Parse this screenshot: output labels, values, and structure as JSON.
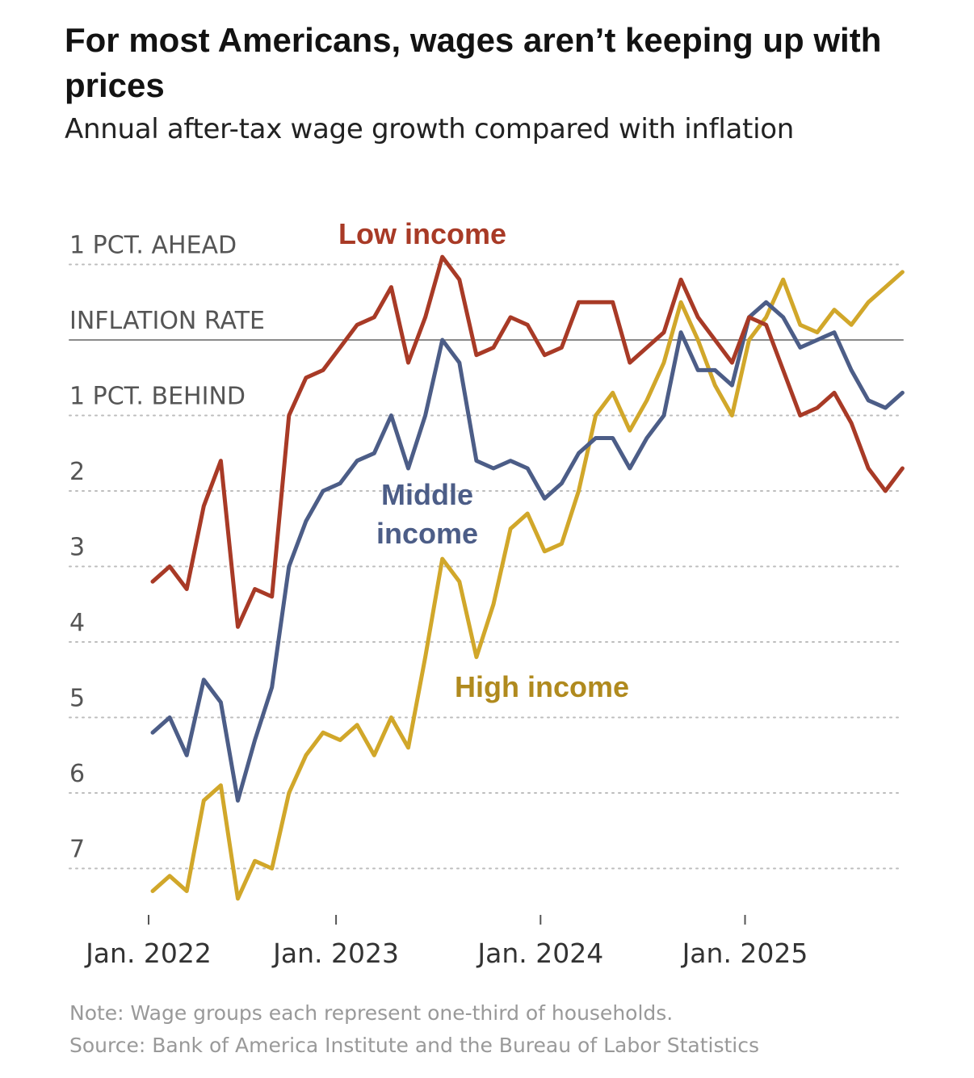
{
  "header": {
    "title": "For most Americans, wages aren’t keeping up with prices",
    "subtitle": "Annual after-tax wage growth compared with inflation"
  },
  "footer": {
    "note": "Note: Wage groups each represent one-third of households.",
    "source": "Source: Bank of America Institute and the Bureau of Labor Statistics"
  },
  "chart_data": {
    "type": "line",
    "title": "For most Americans, wages aren’t keeping up with prices",
    "subtitle": "Annual after-tax wage growth compared with inflation",
    "xlabel": "",
    "ylabel": "",
    "x_start": "Jan. 2022",
    "x_ticks": [
      {
        "label": "Jan. 2022",
        "index": 0
      },
      {
        "label": "Jan. 2023",
        "index": 11
      },
      {
        "label": "Jan. 2024",
        "index": 23
      },
      {
        "label": "Jan. 2025",
        "index": 35
      }
    ],
    "y_ticks": [
      {
        "value": 1,
        "label": "1 PCT. AHEAD"
      },
      {
        "value": 0,
        "label": "INFLATION RATE"
      },
      {
        "value": -1,
        "label": "1 PCT. BEHIND"
      },
      {
        "value": -2,
        "label": "2"
      },
      {
        "value": -3,
        "label": "3"
      },
      {
        "value": -4,
        "label": "4"
      },
      {
        "value": -5,
        "label": "5"
      },
      {
        "value": -6,
        "label": "6"
      },
      {
        "value": -7,
        "label": "7"
      }
    ],
    "ylim": [
      -7.5,
      1.2
    ],
    "grid": "dotted horizontal",
    "reference_line": {
      "value": 0,
      "label": "INFLATION RATE"
    },
    "series": [
      {
        "name": "Low income",
        "color": "#a83a26",
        "values": [
          -3.2,
          -3.0,
          -3.3,
          -2.2,
          -1.6,
          -3.8,
          -3.3,
          -3.4,
          -1.0,
          -0.5,
          -0.4,
          -0.1,
          0.2,
          0.3,
          0.7,
          -0.3,
          0.3,
          1.1,
          0.8,
          -0.2,
          -0.1,
          0.3,
          0.2,
          -0.2,
          -0.1,
          0.5,
          0.5,
          0.5,
          -0.3,
          -0.1,
          0.1,
          0.8,
          0.3,
          0.0,
          -0.3,
          0.3,
          0.2,
          -0.4,
          -1.0,
          -0.9,
          -0.7,
          -1.1,
          -1.7,
          -2.0,
          -1.7
        ]
      },
      {
        "name": "Middle income",
        "color": "#4c5d87",
        "values": [
          -5.2,
          -5.0,
          -5.5,
          -4.5,
          -4.8,
          -6.1,
          -5.3,
          -4.6,
          -3.0,
          -2.4,
          -2.0,
          -1.9,
          -1.6,
          -1.5,
          -1.0,
          -1.7,
          -1.0,
          0.0,
          -0.3,
          -1.6,
          -1.7,
          -1.6,
          -1.7,
          -2.1,
          -1.9,
          -1.5,
          -1.3,
          -1.3,
          -1.7,
          -1.3,
          -1.0,
          0.1,
          -0.4,
          -0.4,
          -0.6,
          0.3,
          0.5,
          0.3,
          -0.1,
          0.0,
          0.1,
          -0.4,
          -0.8,
          -0.9,
          -0.7
        ]
      },
      {
        "name": "High income",
        "color": "#d1a72a",
        "values": [
          -7.3,
          -7.1,
          -7.3,
          -6.1,
          -5.9,
          -7.4,
          -6.9,
          -7.0,
          -6.0,
          -5.5,
          -5.2,
          -5.3,
          -5.1,
          -5.5,
          -5.0,
          -5.4,
          -4.2,
          -2.9,
          -3.2,
          -4.2,
          -3.5,
          -2.5,
          -2.3,
          -2.8,
          -2.7,
          -2.0,
          -1.0,
          -0.7,
          -1.2,
          -0.8,
          -0.3,
          0.5,
          0.0,
          -0.6,
          -1.0,
          0.0,
          0.3,
          0.8,
          0.2,
          0.1,
          0.4,
          0.2,
          0.5,
          0.7,
          0.9
        ]
      }
    ],
    "series_labels": [
      {
        "lines": [
          "Low income"
        ],
        "color": "#a83a26"
      },
      {
        "lines": [
          "Middle",
          "income"
        ],
        "color": "#4c5d87"
      },
      {
        "lines": [
          "High income"
        ],
        "color": "#b08a1e"
      }
    ]
  }
}
